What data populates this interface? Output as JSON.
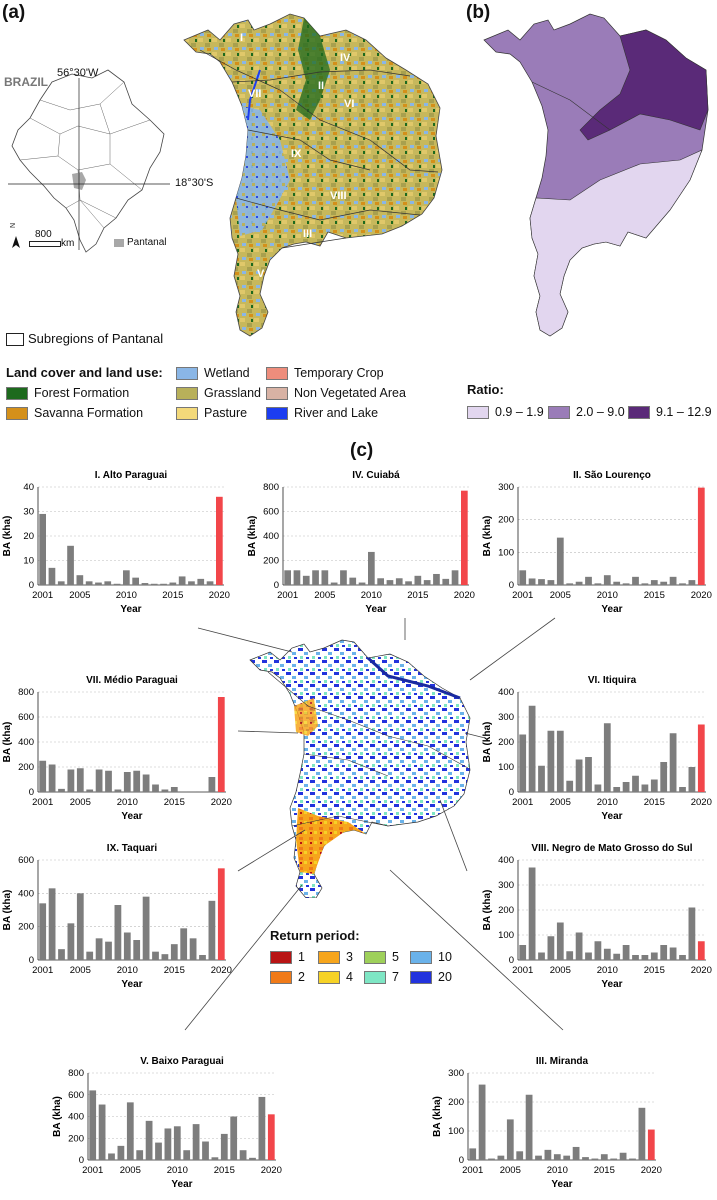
{
  "panels": {
    "a": "(a)",
    "b": "(b)",
    "c": "(c)"
  },
  "inset": {
    "country": "BRAZIL",
    "lon": "56°30'W",
    "lat": "18°30'S",
    "scale_value": "800",
    "scale_unit": "km",
    "north": "N",
    "pantanal": "Pantanal"
  },
  "subregion_labels": [
    "I",
    "II",
    "III",
    "IV",
    "V",
    "VI",
    "VII",
    "VIII",
    "IX"
  ],
  "subregions_legend": "Subregions of Pantanal",
  "landcover": {
    "title": "Land cover and land use:",
    "items": [
      {
        "label": "Forest Formation",
        "color": "#1d6a1d"
      },
      {
        "label": "Savanna Formation",
        "color": "#d4901a"
      },
      {
        "label": "Wetland",
        "color": "#8ab6e6"
      },
      {
        "label": "Grassland",
        "color": "#b8b05a"
      },
      {
        "label": "Pasture",
        "color": "#f3d97a"
      },
      {
        "label": "Temporary Crop",
        "color": "#ee8d7c"
      },
      {
        "label": "Non Vegetated Area",
        "color": "#d8b2a4"
      },
      {
        "label": "River and Lake",
        "color": "#1c3df0"
      }
    ]
  },
  "ratio": {
    "title": "Ratio:",
    "items": [
      {
        "label": "0.9 – 1.9",
        "color": "#e2d6ef"
      },
      {
        "label": "2.0 – 9.0",
        "color": "#9a7cb8"
      },
      {
        "label": "9.1 – 12.9",
        "color": "#5a2a78"
      }
    ]
  },
  "return_period": {
    "title": "Return period:",
    "items": [
      {
        "label": "1",
        "color": "#b81414"
      },
      {
        "label": "2",
        "color": "#f07a18"
      },
      {
        "label": "3",
        "color": "#f6a51c"
      },
      {
        "label": "4",
        "color": "#f6d226"
      },
      {
        "label": "5",
        "color": "#9ed05a"
      },
      {
        "label": "7",
        "color": "#7ee6c4"
      },
      {
        "label": "10",
        "color": "#6ab2ea"
      },
      {
        "label": "20",
        "color": "#2233dd"
      }
    ]
  },
  "chart_data": [
    {
      "type": "bar",
      "title": "I.  Alto Paraguai",
      "xlabel": "Year",
      "ylabel": "BA (kha)",
      "ylim": [
        0,
        40
      ],
      "yticks": [
        0,
        10,
        20,
        30,
        40
      ],
      "categories": [
        "2001",
        "2002",
        "2003",
        "2004",
        "2005",
        "2006",
        "2007",
        "2008",
        "2009",
        "2010",
        "2011",
        "2012",
        "2013",
        "2014",
        "2015",
        "2016",
        "2017",
        "2018",
        "2019",
        "2020"
      ],
      "xtick_labels": [
        "2001",
        "2005",
        "2010",
        "2015",
        "2020"
      ],
      "values": [
        29,
        7,
        1.5,
        16,
        4,
        1.5,
        1,
        1.5,
        0.5,
        6,
        3,
        0.8,
        0.5,
        0.5,
        1,
        3.5,
        1.5,
        2.5,
        1.5,
        36
      ],
      "highlight_index": 19
    },
    {
      "type": "bar",
      "title": "IV.  Cuiabá",
      "xlabel": "Year",
      "ylabel": "BA (kha)",
      "ylim": [
        0,
        800
      ],
      "yticks": [
        0,
        200,
        400,
        600,
        800
      ],
      "categories": [
        "2001",
        "2002",
        "2003",
        "2004",
        "2005",
        "2006",
        "2007",
        "2008",
        "2009",
        "2010",
        "2011",
        "2012",
        "2013",
        "2014",
        "2015",
        "2016",
        "2017",
        "2018",
        "2019",
        "2020"
      ],
      "xtick_labels": [
        "2001",
        "2005",
        "2010",
        "2015",
        "2020"
      ],
      "values": [
        120,
        120,
        75,
        120,
        120,
        20,
        120,
        60,
        20,
        270,
        55,
        40,
        55,
        30,
        75,
        40,
        90,
        50,
        120,
        770
      ],
      "highlight_index": 19
    },
    {
      "type": "bar",
      "title": "II.  São Lourenço",
      "xlabel": "Year",
      "ylabel": "BA (kha)",
      "ylim": [
        0,
        300
      ],
      "yticks": [
        0,
        100,
        200,
        300
      ],
      "categories": [
        "2001",
        "2002",
        "2003",
        "2004",
        "2005",
        "2006",
        "2007",
        "2008",
        "2009",
        "2010",
        "2011",
        "2012",
        "2013",
        "2014",
        "2015",
        "2016",
        "2017",
        "2018",
        "2019",
        "2020"
      ],
      "xtick_labels": [
        "2001",
        "2005",
        "2010",
        "2015",
        "2020"
      ],
      "values": [
        45,
        20,
        18,
        15,
        145,
        5,
        10,
        25,
        5,
        30,
        10,
        5,
        25,
        5,
        15,
        10,
        25,
        5,
        15,
        298
      ],
      "highlight_index": 19
    },
    {
      "type": "bar",
      "title": "VII.  Médio Paraguai",
      "xlabel": "Year",
      "ylabel": "BA (kha)",
      "ylim": [
        0,
        800
      ],
      "yticks": [
        0,
        200,
        400,
        600,
        800
      ],
      "categories": [
        "2001",
        "2002",
        "2003",
        "2004",
        "2005",
        "2006",
        "2007",
        "2008",
        "2009",
        "2010",
        "2011",
        "2012",
        "2013",
        "2014",
        "2015",
        "2016",
        "2017",
        "2018",
        "2019",
        "2020"
      ],
      "xtick_labels": [
        "2001",
        "2005",
        "2010",
        "2015",
        "2020"
      ],
      "values": [
        250,
        220,
        25,
        180,
        190,
        20,
        180,
        170,
        20,
        160,
        170,
        140,
        60,
        20,
        40,
        5,
        5,
        5,
        120,
        760
      ],
      "highlight_index": 19
    },
    {
      "type": "bar",
      "title": "VI.  Itiquira",
      "xlabel": "Year",
      "ylabel": "BA (kha)",
      "ylim": [
        0,
        400
      ],
      "yticks": [
        0,
        100,
        200,
        300,
        400
      ],
      "categories": [
        "2001",
        "2002",
        "2003",
        "2004",
        "2005",
        "2006",
        "2007",
        "2008",
        "2009",
        "2010",
        "2011",
        "2012",
        "2013",
        "2014",
        "2015",
        "2016",
        "2017",
        "2018",
        "2019",
        "2020"
      ],
      "xtick_labels": [
        "2001",
        "2005",
        "2010",
        "2015",
        "2020"
      ],
      "values": [
        230,
        345,
        105,
        245,
        245,
        45,
        130,
        140,
        30,
        275,
        20,
        40,
        65,
        30,
        50,
        120,
        235,
        20,
        100,
        270
      ],
      "highlight_index": 19
    },
    {
      "type": "bar",
      "title": "IX.  Taquari",
      "xlabel": "Year",
      "ylabel": "BA (kha)",
      "ylim": [
        0,
        600
      ],
      "yticks": [
        0,
        200,
        400,
        600
      ],
      "categories": [
        "2001",
        "2002",
        "2003",
        "2004",
        "2005",
        "2006",
        "2007",
        "2008",
        "2009",
        "2010",
        "2011",
        "2012",
        "2013",
        "2014",
        "2015",
        "2016",
        "2017",
        "2018",
        "2019",
        "2020"
      ],
      "xtick_labels": [
        "2001",
        "2005",
        "2010",
        "2015",
        "2020"
      ],
      "values": [
        340,
        430,
        65,
        220,
        400,
        50,
        130,
        110,
        330,
        165,
        120,
        380,
        50,
        35,
        95,
        190,
        130,
        30,
        355,
        550
      ],
      "highlight_index": 19
    },
    {
      "type": "bar",
      "title": "VIII.  Negro de Mato Grosso do Sul",
      "xlabel": "Year",
      "ylabel": "BA (kha)",
      "ylim": [
        0,
        400
      ],
      "yticks": [
        0,
        100,
        200,
        300,
        400
      ],
      "categories": [
        "2001",
        "2002",
        "2003",
        "2004",
        "2005",
        "2006",
        "2007",
        "2008",
        "2009",
        "2010",
        "2011",
        "2012",
        "2013",
        "2014",
        "2015",
        "2016",
        "2017",
        "2018",
        "2019",
        "2020"
      ],
      "xtick_labels": [
        "2001",
        "2005",
        "2010",
        "2015",
        "2020"
      ],
      "values": [
        60,
        370,
        30,
        95,
        150,
        35,
        110,
        30,
        75,
        45,
        25,
        60,
        20,
        20,
        30,
        60,
        50,
        20,
        210,
        75
      ],
      "highlight_index": 19
    },
    {
      "type": "bar",
      "title": "V.  Baixo Paraguai",
      "xlabel": "Year",
      "ylabel": "BA (kha)",
      "ylim": [
        0,
        800
      ],
      "yticks": [
        0,
        200,
        400,
        600,
        800
      ],
      "categories": [
        "2001",
        "2002",
        "2003",
        "2004",
        "2005",
        "2006",
        "2007",
        "2008",
        "2009",
        "2010",
        "2011",
        "2012",
        "2013",
        "2014",
        "2015",
        "2016",
        "2017",
        "2018",
        "2019",
        "2020"
      ],
      "xtick_labels": [
        "2001",
        "2005",
        "2010",
        "2015",
        "2020"
      ],
      "values": [
        640,
        510,
        60,
        130,
        530,
        90,
        360,
        160,
        290,
        310,
        90,
        330,
        170,
        25,
        240,
        400,
        90,
        20,
        580,
        420
      ],
      "highlight_index": 19
    },
    {
      "type": "bar",
      "title": "III.  Miranda",
      "xlabel": "Year",
      "ylabel": "BA (kha)",
      "ylim": [
        0,
        300
      ],
      "yticks": [
        0,
        100,
        200,
        300
      ],
      "categories": [
        "2001",
        "2002",
        "2003",
        "2004",
        "2005",
        "2006",
        "2007",
        "2008",
        "2009",
        "2010",
        "2011",
        "2012",
        "2013",
        "2014",
        "2015",
        "2016",
        "2017",
        "2018",
        "2019",
        "2020"
      ],
      "xtick_labels": [
        "2001",
        "2005",
        "2010",
        "2015",
        "2020"
      ],
      "values": [
        40,
        260,
        5,
        15,
        140,
        30,
        225,
        15,
        35,
        20,
        15,
        45,
        10,
        5,
        20,
        5,
        25,
        5,
        180,
        105
      ],
      "highlight_index": 19
    }
  ]
}
